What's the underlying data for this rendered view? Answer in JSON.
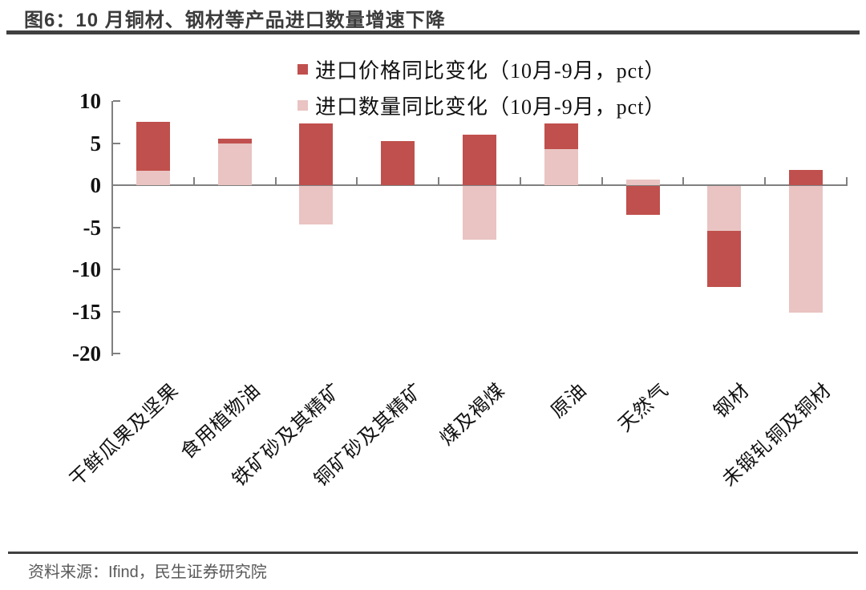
{
  "title": "图6：10 月铜材、钢材等产品进口数量增速下降",
  "source": "资料来源：Ifind，民生证券研究院",
  "colors": {
    "price_series": "#c0504d",
    "quantity_series": "#e9c4c2",
    "axis": "#808080",
    "title_text": "#3b3b3b",
    "rule": "#404040",
    "source_text": "#595959",
    "tick_label_text": "#111111"
  },
  "chart_data": {
    "type": "bar",
    "bar_mode": "overlap",
    "title": "图6：10 月铜材、钢材等产品进口数量增速下降",
    "categories": [
      "干鲜瓜果及坚果",
      "食用植物油",
      "铁矿砂及其精矿",
      "铜矿砂及其精矿",
      "煤及褐煤",
      "原油",
      "天然气",
      "钢材",
      "未锻轧铜及铜材"
    ],
    "series": [
      {
        "name": "进口价格同比变化（10月-9月，pct）",
        "color": "#c0504d",
        "values": [
          7.5,
          5.5,
          7.3,
          5.2,
          6.0,
          7.3,
          -3.4,
          -12.0,
          1.8
        ]
      },
      {
        "name": "进口数量同比变化（10月-9月，pct）",
        "color": "#e9c4c2",
        "values": [
          1.7,
          5.0,
          -4.6,
          0,
          -6.4,
          4.3,
          0.7,
          -5.3,
          -15.0
        ]
      }
    ],
    "ylabel": "",
    "xlabel": "",
    "yticks": [
      10,
      5,
      0,
      -5,
      -10,
      -15,
      -20
    ],
    "ylim": [
      -20,
      10
    ],
    "grid": false,
    "legend_position": "top-center"
  }
}
